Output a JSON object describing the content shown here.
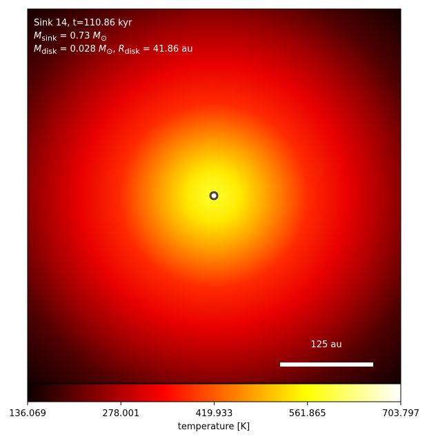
{
  "chart_data": {
    "type": "heatmap",
    "info_lines": [
      [
        {
          "t": "Sink 14, t=110.86 kyr"
        }
      ],
      [
        {
          "t": "M",
          "italic": true
        },
        {
          "sub": "sink"
        },
        {
          "t": " = 0.73 "
        },
        {
          "t": "M",
          "italic": true
        },
        {
          "sub": "⊙"
        }
      ],
      [
        {
          "t": "M",
          "italic": true
        },
        {
          "sub": "disk"
        },
        {
          "t": " = 0.028 "
        },
        {
          "t": "M",
          "italic": true
        },
        {
          "sub": "⊙"
        },
        {
          "t": ", "
        },
        {
          "t": "R",
          "italic": true
        },
        {
          "sub": "disk"
        },
        {
          "t": " = 41.86 au"
        }
      ]
    ],
    "scale_bar_label": "125 au",
    "colormap": "hot",
    "colorbar_label": "temperature [K]",
    "clim": [
      136.069,
      703.797
    ],
    "cticks": [
      136.069,
      278.001,
      419.933,
      561.865,
      703.797
    ]
  }
}
